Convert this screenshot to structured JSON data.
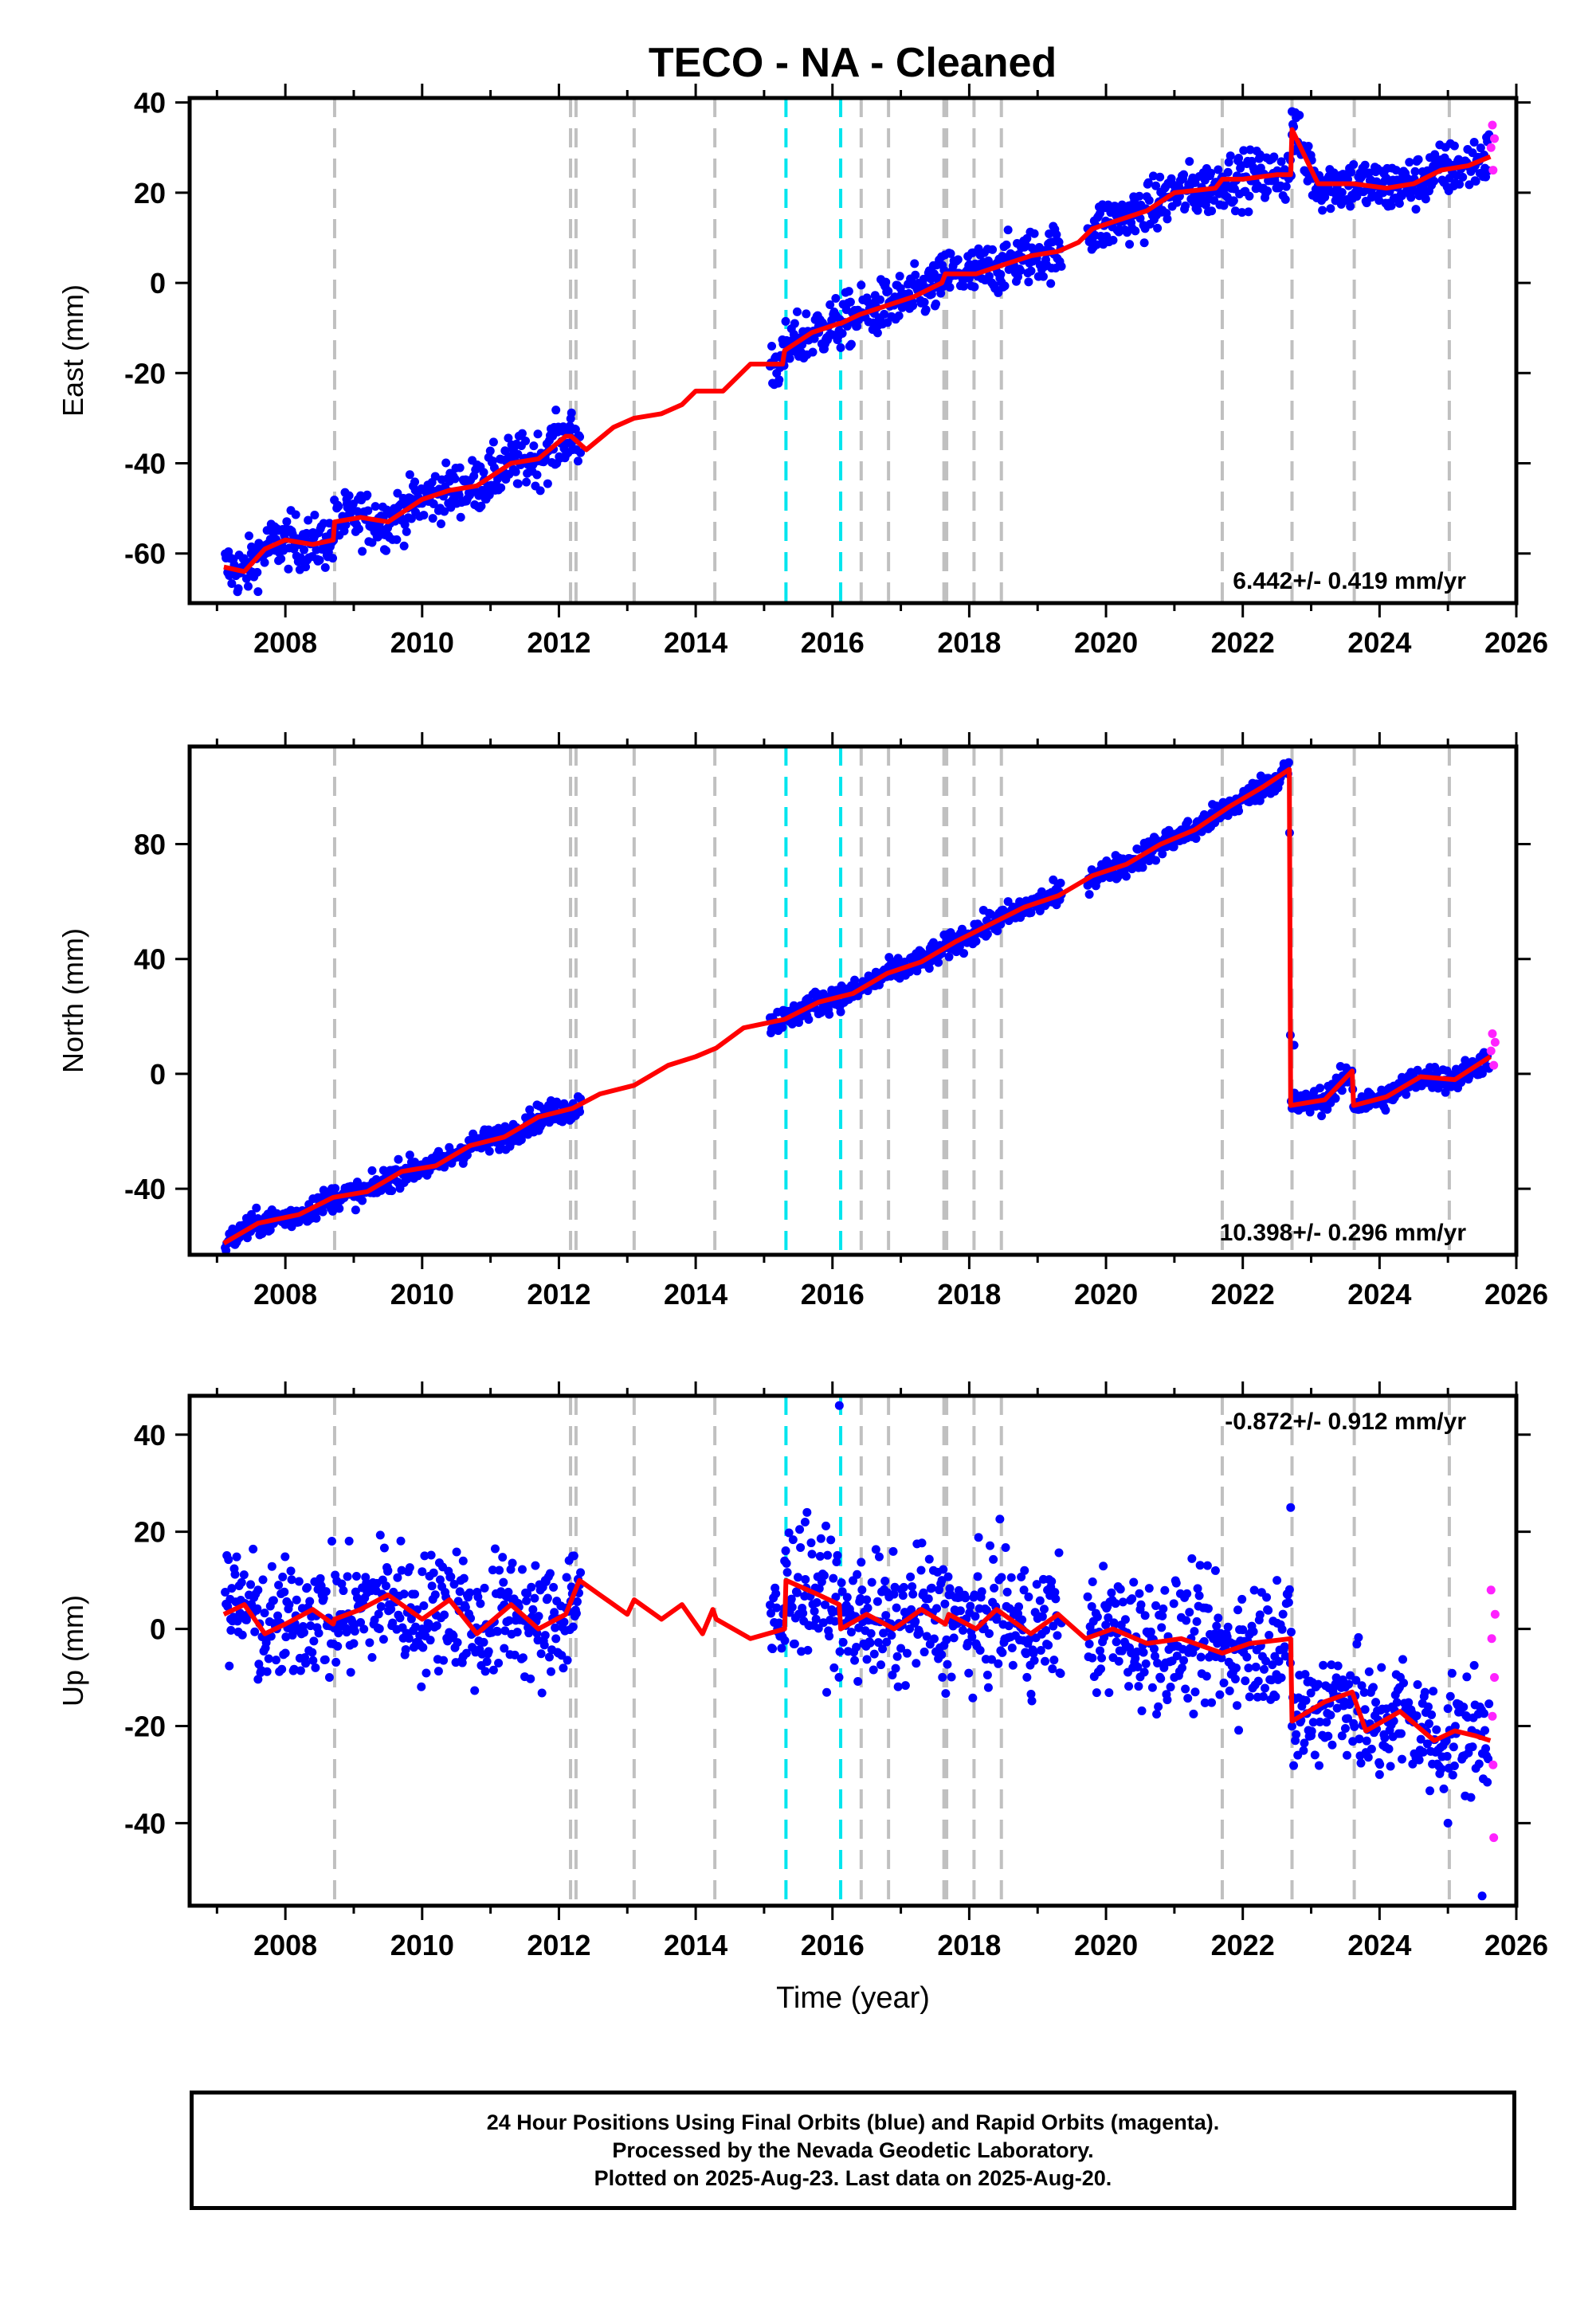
{
  "title": "TECO  - NA - Cleaned",
  "colors": {
    "final_orbits": "#0000ff",
    "rapid_orbits": "#ff22ff",
    "model": "#ff0000",
    "offset_equipment": "#c0c0c0",
    "offset_earthquake": "#00e5ee"
  },
  "chart_data": [
    {
      "type": "scatter",
      "name": "east",
      "ylabel": "East (mm)",
      "xlabel": "",
      "xlim": [
        2006.6,
        2026.0
      ],
      "ylim": [
        -71,
        41
      ],
      "yticks": [
        -60,
        -40,
        -20,
        0,
        20,
        40
      ],
      "xticks": [
        2008,
        2010,
        2012,
        2014,
        2016,
        2018,
        2020,
        2022,
        2024,
        2026
      ],
      "rate_label": "6.442+/- 0.419 mm/yr",
      "rate_position": "bottom-right",
      "model_x": [
        2007.1,
        2007.4,
        2007.7,
        2008.0,
        2008.4,
        2008.7,
        2008.72,
        2009.1,
        2009.5,
        2010.0,
        2010.4,
        2010.8,
        2011.3,
        2011.7,
        2012.1,
        2012.18,
        2012.4,
        2012.8,
        2013.1,
        2013.5,
        2013.8,
        2014.0,
        2014.4,
        2014.8,
        2015.27,
        2015.3,
        2015.7,
        2016.1,
        2016.12,
        2016.4,
        2016.8,
        2017.2,
        2017.6,
        2017.65,
        2018.1,
        2018.5,
        2018.9,
        2019.3,
        2019.6,
        2019.8,
        2020.2,
        2020.6,
        2021.0,
        2021.6,
        2021.7,
        2022.0,
        2022.5,
        2022.7,
        2022.72,
        2023.1,
        2023.6,
        2023.62,
        2024.1,
        2024.5,
        2024.9,
        2025.3,
        2025.62
      ],
      "model_y": [
        -63,
        -64,
        -59,
        -57,
        -58,
        -57,
        -53,
        -52,
        -53,
        -48,
        -46,
        -45,
        -40,
        -39,
        -34,
        -34,
        -37,
        -32,
        -30,
        -29,
        -27,
        -24,
        -24,
        -18,
        -18,
        -15,
        -11,
        -9,
        -9,
        -7,
        -5,
        -3,
        0,
        2,
        2,
        4,
        6,
        7,
        9,
        12,
        14,
        16,
        20,
        21,
        23,
        23,
        24,
        24,
        34,
        22,
        22,
        22,
        21,
        22,
        25,
        26,
        28
      ],
      "final_orbits": [
        [
          2007.2,
          -61
        ],
        [
          2007.5,
          -60
        ],
        [
          2007.8,
          -55
        ],
        [
          2008.3,
          -57
        ],
        [
          2008.9,
          -49
        ],
        [
          2009.4,
          -52
        ],
        [
          2009.9,
          -46
        ],
        [
          2010.4,
          -44
        ],
        [
          2010.9,
          -42
        ],
        [
          2011.4,
          -38
        ],
        [
          2011.9,
          -33
        ],
        [
          2012.2,
          -37
        ],
        [
          2015.3,
          -17
        ],
        [
          2015.8,
          -11
        ],
        [
          2016.3,
          -8
        ],
        [
          2016.9,
          -4
        ],
        [
          2017.5,
          -1
        ],
        [
          2018.0,
          1
        ],
        [
          2018.6,
          4
        ],
        [
          2019.2,
          7
        ],
        [
          2019.8,
          12
        ],
        [
          2020.4,
          15
        ],
        [
          2021.0,
          20
        ],
        [
          2021.6,
          22
        ],
        [
          2022.2,
          24
        ],
        [
          2022.7,
          24
        ],
        [
          2022.72,
          38
        ],
        [
          2023.2,
          22
        ],
        [
          2023.7,
          22
        ],
        [
          2024.2,
          22
        ],
        [
          2024.8,
          25
        ],
        [
          2025.4,
          26
        ]
      ],
      "rapid_orbits": [
        [
          2025.63,
          30
        ],
        [
          2025.65,
          35
        ],
        [
          2025.66,
          25
        ],
        [
          2025.68,
          32
        ]
      ]
    },
    {
      "type": "scatter",
      "name": "north",
      "ylabel": "North (mm)",
      "xlabel": "",
      "xlim": [
        2006.6,
        2026.0
      ],
      "ylim": [
        -63,
        114
      ],
      "yticks": [
        -40,
        0,
        40,
        80
      ],
      "xticks": [
        2008,
        2010,
        2012,
        2014,
        2016,
        2018,
        2020,
        2022,
        2024,
        2026
      ],
      "rate_label": "10.398+/- 0.296 mm/yr",
      "rate_position": "bottom-right",
      "model_x": [
        2007.1,
        2007.6,
        2008.2,
        2008.7,
        2009.2,
        2009.7,
        2010.2,
        2010.7,
        2011.2,
        2011.7,
        2012.2,
        2012.6,
        2013.1,
        2013.6,
        2014.0,
        2014.3,
        2014.7,
        2015.3,
        2015.8,
        2016.3,
        2016.8,
        2017.3,
        2017.8,
        2018.3,
        2018.8,
        2019.3,
        2019.8,
        2020.3,
        2020.8,
        2021.3,
        2021.8,
        2022.3,
        2022.68,
        2022.7,
        2023.2,
        2023.6,
        2023.62,
        2024.1,
        2024.6,
        2025.1,
        2025.62
      ],
      "model_y": [
        -59,
        -52,
        -49,
        -43,
        -41,
        -34,
        -32,
        -25,
        -22,
        -15,
        -12,
        -7,
        -4,
        3,
        6,
        9,
        16,
        19,
        25,
        28,
        35,
        39,
        46,
        52,
        58,
        62,
        69,
        73,
        80,
        85,
        93,
        100,
        106,
        -11,
        -9,
        1,
        -11,
        -8,
        -1,
        -2,
        6
      ],
      "final_orbits": [
        [
          2007.2,
          -58
        ],
        [
          2007.8,
          -51
        ],
        [
          2008.6,
          -44
        ],
        [
          2009.3,
          -39
        ],
        [
          2010.0,
          -32
        ],
        [
          2010.8,
          -25
        ],
        [
          2011.6,
          -18
        ],
        [
          2012.2,
          -11
        ],
        [
          2015.4,
          20
        ],
        [
          2016.0,
          25
        ],
        [
          2016.8,
          35
        ],
        [
          2017.6,
          43
        ],
        [
          2018.4,
          54
        ],
        [
          2019.2,
          62
        ],
        [
          2020.0,
          71
        ],
        [
          2020.8,
          80
        ],
        [
          2021.6,
          90
        ],
        [
          2022.2,
          101
        ],
        [
          2022.6,
          108
        ],
        [
          2022.75,
          10
        ],
        [
          2023.3,
          -6
        ],
        [
          2023.9,
          -10
        ],
        [
          2024.5,
          0
        ],
        [
          2025.2,
          -1
        ]
      ],
      "rapid_orbits": [
        [
          2025.63,
          8
        ],
        [
          2025.65,
          14
        ],
        [
          2025.67,
          3
        ],
        [
          2025.69,
          11
        ]
      ]
    },
    {
      "type": "scatter",
      "name": "up",
      "ylabel": "Up (mm)",
      "xlabel": "Time (year)",
      "xlim": [
        2006.6,
        2026.0
      ],
      "ylim": [
        -57,
        48
      ],
      "yticks": [
        -40,
        -20,
        0,
        20,
        40
      ],
      "xticks": [
        2008,
        2010,
        2012,
        2014,
        2016,
        2018,
        2020,
        2022,
        2024,
        2026
      ],
      "rate_label": "-0.872+/- 0.912 mm/yr",
      "rate_position": "top-right",
      "model_x": [
        2007.1,
        2007.4,
        2007.7,
        2008.0,
        2008.4,
        2008.7,
        2008.72,
        2009.1,
        2009.5,
        2010.0,
        2010.4,
        2010.8,
        2011.3,
        2011.7,
        2012.1,
        2012.3,
        2012.6,
        2013.0,
        2013.1,
        2013.5,
        2013.8,
        2014.1,
        2014.25,
        2014.3,
        2014.8,
        2015.3,
        2015.32,
        2015.8,
        2016.1,
        2016.12,
        2016.5,
        2016.9,
        2017.3,
        2017.65,
        2017.7,
        2018.1,
        2018.4,
        2018.9,
        2019.3,
        2019.7,
        2020.1,
        2020.6,
        2021.1,
        2021.7,
        2022.1,
        2022.7,
        2022.72,
        2023.2,
        2023.6,
        2023.8,
        2024.3,
        2024.8,
        2025.1,
        2025.4,
        2025.62
      ],
      "model_y": [
        3,
        5,
        -1,
        1,
        4,
        1,
        2,
        4,
        7,
        2,
        6,
        -1,
        5,
        0,
        3,
        10,
        7,
        3,
        6,
        2,
        5,
        -1,
        4,
        2,
        -2,
        0,
        10,
        7,
        5,
        0,
        3,
        0,
        4,
        1,
        3,
        0,
        4,
        -1,
        3,
        -2,
        0,
        -3,
        -2,
        -5,
        -3,
        -2,
        -19,
        -15,
        -13,
        -21,
        -17,
        -23,
        -21,
        -22,
        -23
      ],
      "final_orbits": [
        [
          2007.2,
          2
        ],
        [
          2007.6,
          8
        ],
        [
          2008.0,
          -5
        ],
        [
          2008.5,
          10
        ],
        [
          2009.0,
          -3
        ],
        [
          2009.5,
          12
        ],
        [
          2010.0,
          0
        ],
        [
          2010.6,
          14
        ],
        [
          2011.2,
          -4
        ],
        [
          2011.8,
          10
        ],
        [
          2012.2,
          15
        ],
        [
          2015.3,
          14
        ],
        [
          2015.6,
          22
        ],
        [
          2016.1,
          46
        ],
        [
          2016.5,
          6
        ],
        [
          2017.0,
          -4
        ],
        [
          2017.6,
          10
        ],
        [
          2018.2,
          0
        ],
        [
          2018.8,
          8
        ],
        [
          2019.8,
          -6
        ],
        [
          2020.5,
          4
        ],
        [
          2021.0,
          -10
        ],
        [
          2021.6,
          12
        ],
        [
          2022.1,
          -14
        ],
        [
          2022.5,
          10
        ],
        [
          2022.7,
          25
        ],
        [
          2023.0,
          -22
        ],
        [
          2023.5,
          -12
        ],
        [
          2024.0,
          -30
        ],
        [
          2024.5,
          -18
        ],
        [
          2025.0,
          -40
        ],
        [
          2025.5,
          -55
        ]
      ],
      "rapid_orbits": [
        [
          2025.63,
          8
        ],
        [
          2025.64,
          -2
        ],
        [
          2025.65,
          -18
        ],
        [
          2025.66,
          -28
        ],
        [
          2025.67,
          -43
        ],
        [
          2025.68,
          -10
        ],
        [
          2025.69,
          3
        ]
      ]
    }
  ],
  "offsets": {
    "equipment_years": [
      2008.72,
      2012.17,
      2012.25,
      2013.1,
      2014.28,
      2016.42,
      2016.82,
      2017.63,
      2017.67,
      2018.07,
      2018.47,
      2021.7,
      2022.72,
      2023.63,
      2025.02
    ],
    "earthquake_years": [
      2015.32,
      2016.12
    ]
  },
  "footer": {
    "line1": "24 Hour Positions Using Final Orbits (blue) and Rapid Orbits (magenta).",
    "line2": "Processed by the Nevada Geodetic Laboratory.",
    "line3": "Plotted on 2025-Aug-23. Last data on 2025-Aug-20."
  }
}
